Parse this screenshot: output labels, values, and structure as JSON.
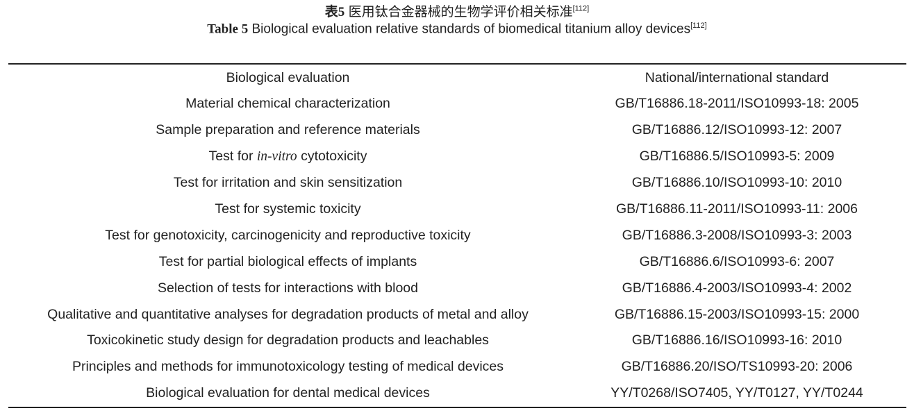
{
  "caption_cn": {
    "label": "表5",
    "text": "医用钛合金器械的生物学评价相关标准",
    "ref": "[112]"
  },
  "caption_en": {
    "label": "Table 5",
    "text": "Biological evaluation relative standards of biomedical titanium alloy devices",
    "ref": "[112]"
  },
  "headers": [
    "Biological evaluation",
    "National/international standard"
  ],
  "rows": [
    {
      "eval": "Material chemical characterization",
      "std": "GB/T16886.18-2011/ISO10993-18: 2005"
    },
    {
      "eval": "Sample preparation and reference materials",
      "std": "GB/T16886.12/ISO10993-12: 2007"
    },
    {
      "eval_pre": "Test for ",
      "eval_it": "in-vitro",
      "eval_post": " cytotoxicity",
      "std": "GB/T16886.5/ISO10993-5: 2009"
    },
    {
      "eval": "Test for irritation and skin sensitization",
      "std": "GB/T16886.10/ISO10993-10: 2010"
    },
    {
      "eval": "Test for systemic toxicity",
      "std": "GB/T16886.11-2011/ISO10993-11: 2006"
    },
    {
      "eval": "Test for genotoxicity, carcinogenicity and reproductive toxicity",
      "std": "GB/T16886.3-2008/ISO10993-3: 2003"
    },
    {
      "eval": "Test for partial biological effects of implants",
      "std": "GB/T16886.6/ISO10993-6: 2007"
    },
    {
      "eval": "Selection of tests for interactions with blood",
      "std": "GB/T16886.4-2003/ISO10993-4: 2002"
    },
    {
      "eval": "Qualitative and quantitative analyses for degradation products of metal and alloy",
      "std": "GB/T16886.15-2003/ISO10993-15: 2000"
    },
    {
      "eval": "Toxicokinetic study design for degradation products and leachables",
      "std": "GB/T16886.16/ISO10993-16: 2010"
    },
    {
      "eval": "Principles and methods for immunotoxicology testing of medical devices",
      "std": "GB/T16886.20/ISO/TS10993-20: 2006"
    },
    {
      "eval": "Biological evaluation for dental medical devices",
      "std": "YY/T0268/ISO7405, YY/T0127, YY/T0244"
    }
  ]
}
